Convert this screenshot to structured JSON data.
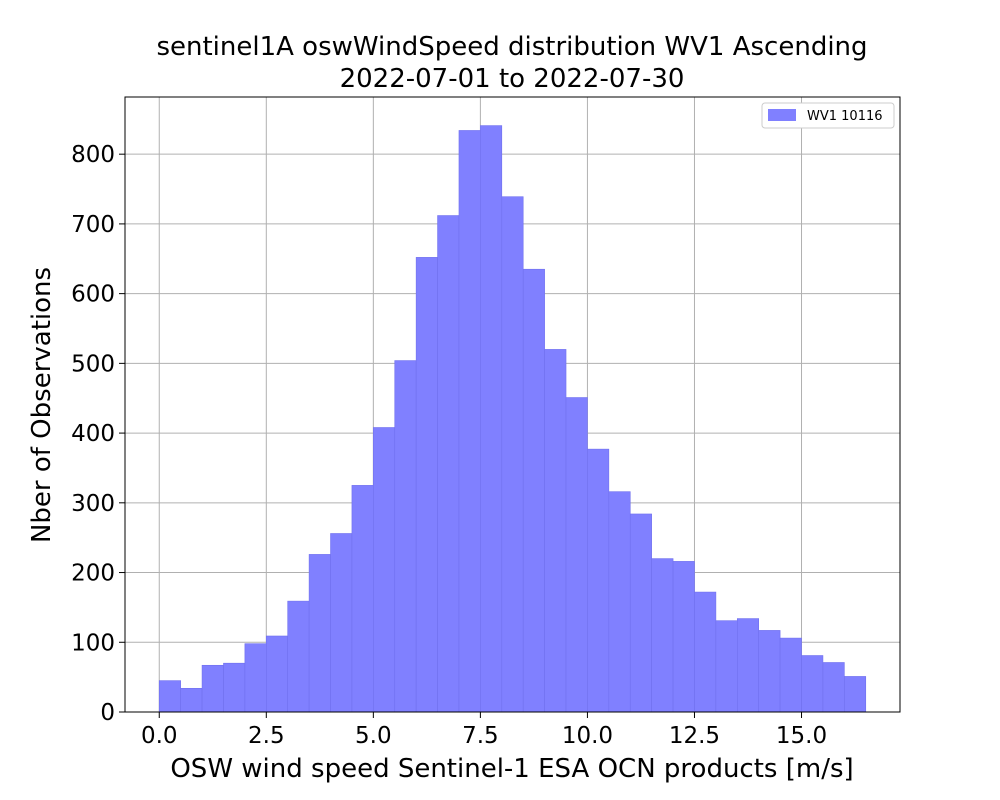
{
  "chart_data": {
    "type": "bar",
    "title_line1": "sentinel1A oswWindSpeed distribution WV1 Ascending",
    "title_line2": "2022-07-01 to 2022-07-30",
    "xlabel": "OSW wind speed Sentinel-1 ESA OCN products [m/s]",
    "ylabel": "Nber of Observations",
    "xlim": [
      -0.8,
      17.3
    ],
    "ylim": [
      0,
      882
    ],
    "x_ticks": [
      0.0,
      2.5,
      5.0,
      7.5,
      10.0,
      12.5,
      15.0
    ],
    "x_tick_labels": [
      "0.0",
      "2.5",
      "5.0",
      "7.5",
      "10.0",
      "12.5",
      "15.0"
    ],
    "y_ticks": [
      0,
      100,
      200,
      300,
      400,
      500,
      600,
      700,
      800
    ],
    "y_tick_labels": [
      "0",
      "100",
      "200",
      "300",
      "400",
      "500",
      "600",
      "700",
      "800"
    ],
    "grid": true,
    "legend_position": "top-right",
    "bar_color": "#8080ff",
    "bar_edge_color": "#7070ee",
    "bin_start": 0.0,
    "bin_width": 0.5,
    "series": [
      {
        "name": "WV1 10116",
        "values": [
          45,
          34,
          67,
          70,
          98,
          109,
          159,
          226,
          256,
          325,
          408,
          504,
          652,
          712,
          834,
          841,
          739,
          635,
          520,
          451,
          377,
          316,
          284,
          220,
          216,
          172,
          131,
          134,
          117,
          106,
          81,
          71,
          51
        ]
      }
    ]
  }
}
